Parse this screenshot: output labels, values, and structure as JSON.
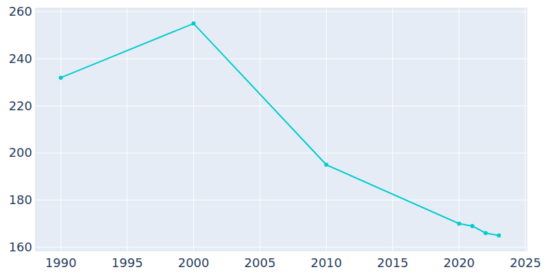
{
  "chart_data": {
    "type": "line",
    "x": [
      1990,
      2000,
      2010,
      2020,
      2021,
      2022,
      2023
    ],
    "values": [
      232,
      255,
      195,
      170,
      169,
      166,
      165
    ],
    "color": "#00cccc",
    "marker": "circle",
    "xlim": [
      1988.1,
      2025.1
    ],
    "xticks": [
      1990,
      1995,
      2000,
      2005,
      2010,
      2015,
      2020,
      2025
    ],
    "ylim": [
      158.5,
      261.5
    ],
    "yticks": [
      160,
      180,
      200,
      220,
      240,
      260
    ],
    "grid": true
  }
}
